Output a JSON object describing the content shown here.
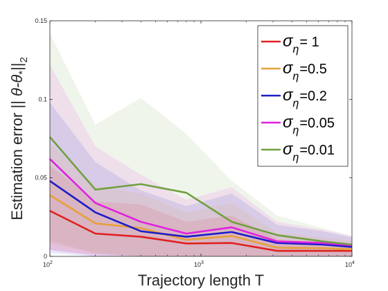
{
  "chart_data": {
    "type": "line",
    "xscale": "log",
    "xlabel": "Trajectory length T",
    "ylabel_prefix": "Estimation error || ",
    "ylabel_theta": "θ-θ",
    "ylabel_star": "*",
    "ylabel_bars": "||",
    "ylabel_sub": "2",
    "xlim": [
      100,
      10000
    ],
    "ylim": [
      0,
      0.15
    ],
    "x": [
      100,
      200,
      400,
      800,
      1600,
      3200,
      6400,
      10000
    ],
    "xticks": [
      {
        "value": 100,
        "base": "10",
        "exp": "2"
      },
      {
        "value": 1000,
        "base": "10",
        "exp": "3"
      },
      {
        "value": 10000,
        "base": "10",
        "exp": "4"
      }
    ],
    "yticks": [
      {
        "value": 0,
        "label": "0"
      },
      {
        "value": 0.05,
        "label": "0.05"
      },
      {
        "value": 0.1,
        "label": "0.1"
      },
      {
        "value": 0.15,
        "label": "0.15"
      }
    ],
    "legend_position": "top-right",
    "legend_symbol": "σ",
    "legend_sub": "η",
    "series": [
      {
        "name": "= 1",
        "color": "#e02020",
        "values": [
          0.029,
          0.0145,
          0.0125,
          0.0082,
          0.0085,
          0.0035,
          0.0035,
          0.0035
        ],
        "upper": [
          0.058,
          0.035,
          0.033,
          0.022,
          0.026,
          0.011,
          0.009,
          0.008
        ],
        "lower": [
          0.004,
          0.001,
          0.0,
          0.0,
          0.0,
          0.0,
          0.0,
          0.0
        ]
      },
      {
        "name": "=0.5",
        "color": "#e6a03a",
        "values": [
          0.039,
          0.021,
          0.018,
          0.0105,
          0.013,
          0.0055,
          0.0052,
          0.0045
        ],
        "upper": [
          0.072,
          0.045,
          0.04,
          0.028,
          0.034,
          0.015,
          0.012,
          0.01
        ],
        "lower": [
          0.008,
          0.002,
          0.0,
          0.0,
          0.0,
          0.0,
          0.0,
          0.0
        ]
      },
      {
        "name": "=0.2",
        "color": "#1c1cc8",
        "values": [
          0.048,
          0.028,
          0.016,
          0.0125,
          0.0155,
          0.0085,
          0.0075,
          0.006
        ],
        "upper": [
          0.098,
          0.06,
          0.042,
          0.032,
          0.04,
          0.02,
          0.016,
          0.012
        ],
        "lower": [
          0.002,
          0.0,
          0.0,
          0.0,
          0.0,
          0.0,
          0.0,
          0.0
        ]
      },
      {
        "name": "=0.05",
        "color": "#e020e0",
        "values": [
          0.062,
          0.034,
          0.022,
          0.0145,
          0.0185,
          0.0095,
          0.0085,
          0.007
        ],
        "upper": [
          0.122,
          0.07,
          0.052,
          0.036,
          0.044,
          0.022,
          0.017,
          0.013
        ],
        "lower": [
          0.004,
          0.0,
          0.0,
          0.0,
          0.0,
          0.0,
          0.0,
          0.0
        ]
      },
      {
        "name": "=0.01",
        "color": "#70a040",
        "values": [
          0.076,
          0.0425,
          0.046,
          0.0405,
          0.022,
          0.0135,
          0.0095,
          0.0075
        ],
        "upper": [
          0.142,
          0.084,
          0.101,
          0.078,
          0.048,
          0.026,
          0.018,
          0.013
        ],
        "lower": [
          0.01,
          0.002,
          0.0,
          0.0,
          0.0,
          0.0,
          0.0,
          0.0
        ]
      }
    ]
  }
}
